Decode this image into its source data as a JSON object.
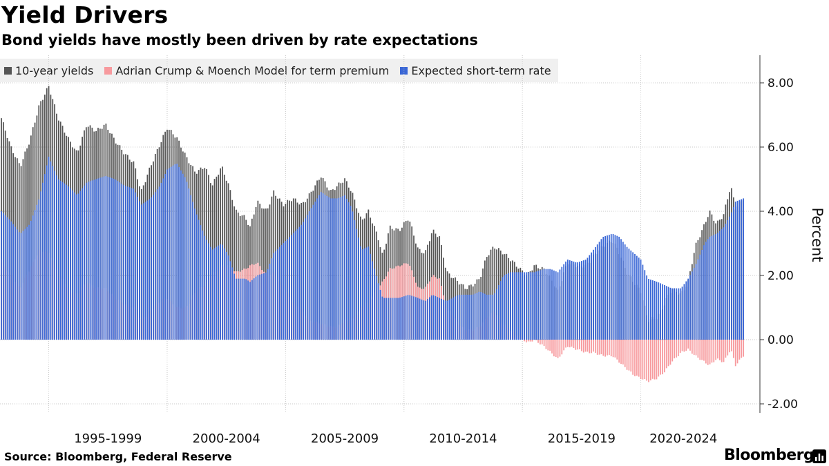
{
  "title": "Yield Drivers",
  "subtitle": "Bond yields have mostly been driven by rate expectations",
  "source": "Source: Bloomberg, Federal Reserve",
  "brand": "Bloomberg",
  "legend": [
    {
      "label": "10-year yields",
      "color": "#555555"
    },
    {
      "label": "Adrian Crump & Moench Model for term premium",
      "color": "#f79a9e"
    },
    {
      "label": "Expected short-term rate",
      "color": "#3a67d6"
    }
  ],
  "chart_data": {
    "type": "bar",
    "description_type": "stacked monthly bars overlay",
    "ylabel": "Percent",
    "ylim": [
      -2.2,
      8.8
    ],
    "y_ticks": [
      8,
      6,
      4,
      2,
      0,
      -2
    ],
    "y_tick_labels": [
      "8.00",
      "6.00",
      "4.00",
      "2.00",
      "0.00",
      "-2.00"
    ],
    "x_range": [
      1993.0,
      2024.33
    ],
    "x_period_labels": [
      {
        "label": "1995-1999",
        "center": 1997.5
      },
      {
        "label": "2000-2004",
        "center": 2002.5
      },
      {
        "label": "2005-2009",
        "center": 2007.5
      },
      {
        "label": "2010-2014",
        "center": 2012.5
      },
      {
        "label": "2015-2019",
        "center": 2017.5
      },
      {
        "label": "2020-2024",
        "center": 2021.8
      }
    ],
    "grid": true,
    "legend_position": "top-left",
    "series": [
      {
        "name": "10-year yields",
        "color": "#555555",
        "points": [
          [
            1993.0,
            6.9
          ],
          [
            1993.4,
            6.0
          ],
          [
            1993.8,
            5.4
          ],
          [
            1994.2,
            6.2
          ],
          [
            1994.6,
            7.3
          ],
          [
            1995.0,
            7.9
          ],
          [
            1995.4,
            6.9
          ],
          [
            1995.8,
            6.3
          ],
          [
            1996.2,
            5.8
          ],
          [
            1996.6,
            6.7
          ],
          [
            1997.0,
            6.5
          ],
          [
            1997.4,
            6.7
          ],
          [
            1997.8,
            6.2
          ],
          [
            1998.2,
            5.8
          ],
          [
            1998.6,
            5.5
          ],
          [
            1998.9,
            4.6
          ],
          [
            1999.3,
            5.4
          ],
          [
            1999.7,
            6.1
          ],
          [
            2000.0,
            6.6
          ],
          [
            2000.4,
            6.3
          ],
          [
            2000.8,
            5.7
          ],
          [
            2001.2,
            5.2
          ],
          [
            2001.6,
            5.4
          ],
          [
            2001.9,
            4.8
          ],
          [
            2002.3,
            5.4
          ],
          [
            2002.6,
            4.8
          ],
          [
            2002.9,
            4.0
          ],
          [
            2003.3,
            3.8
          ],
          [
            2003.5,
            3.5
          ],
          [
            2003.8,
            4.3
          ],
          [
            2004.2,
            4.0
          ],
          [
            2004.5,
            4.6
          ],
          [
            2004.9,
            4.2
          ],
          [
            2005.3,
            4.4
          ],
          [
            2005.7,
            4.2
          ],
          [
            2006.0,
            4.5
          ],
          [
            2006.5,
            5.1
          ],
          [
            2006.9,
            4.6
          ],
          [
            2007.2,
            4.8
          ],
          [
            2007.5,
            5.0
          ],
          [
            2007.8,
            4.6
          ],
          [
            2008.2,
            3.7
          ],
          [
            2008.5,
            4.0
          ],
          [
            2008.9,
            3.2
          ],
          [
            2009.1,
            2.6
          ],
          [
            2009.4,
            3.5
          ],
          [
            2009.8,
            3.4
          ],
          [
            2010.2,
            3.8
          ],
          [
            2010.6,
            2.8
          ],
          [
            2010.9,
            2.7
          ],
          [
            2011.2,
            3.4
          ],
          [
            2011.5,
            3.2
          ],
          [
            2011.8,
            2.1
          ],
          [
            2012.3,
            1.8
          ],
          [
            2012.6,
            1.6
          ],
          [
            2012.9,
            1.7
          ],
          [
            2013.2,
            1.9
          ],
          [
            2013.5,
            2.6
          ],
          [
            2013.8,
            2.9
          ],
          [
            2014.2,
            2.7
          ],
          [
            2014.5,
            2.5
          ],
          [
            2014.9,
            2.2
          ],
          [
            2015.2,
            2.0
          ],
          [
            2015.5,
            2.3
          ],
          [
            2015.9,
            2.2
          ],
          [
            2016.2,
            1.9
          ],
          [
            2016.5,
            1.5
          ],
          [
            2016.9,
            2.4
          ],
          [
            2017.3,
            2.3
          ],
          [
            2017.7,
            2.3
          ],
          [
            2018.0,
            2.6
          ],
          [
            2018.4,
            2.9
          ],
          [
            2018.8,
            3.1
          ],
          [
            2019.1,
            2.7
          ],
          [
            2019.4,
            2.1
          ],
          [
            2019.7,
            1.8
          ],
          [
            2020.0,
            1.5
          ],
          [
            2020.3,
            0.6
          ],
          [
            2020.7,
            0.7
          ],
          [
            2021.0,
            1.1
          ],
          [
            2021.3,
            1.6
          ],
          [
            2021.7,
            1.4
          ],
          [
            2022.0,
            1.8
          ],
          [
            2022.3,
            2.9
          ],
          [
            2022.7,
            3.6
          ],
          [
            2022.9,
            4.0
          ],
          [
            2023.2,
            3.6
          ],
          [
            2023.5,
            3.9
          ],
          [
            2023.8,
            4.8
          ],
          [
            2024.0,
            4.1
          ],
          [
            2024.33,
            4.4
          ]
        ]
      },
      {
        "name": "Adrian Crump & Moench Model for term premium",
        "color": "#f79a9e",
        "points": [
          [
            1993.0,
            2.5
          ],
          [
            1993.4,
            2.0
          ],
          [
            1993.8,
            1.6
          ],
          [
            1994.2,
            2.2
          ],
          [
            1994.6,
            2.8
          ],
          [
            1995.0,
            2.7
          ],
          [
            1995.4,
            2.1
          ],
          [
            1995.8,
            1.6
          ],
          [
            1996.2,
            1.4
          ],
          [
            1996.6,
            1.8
          ],
          [
            1997.0,
            1.6
          ],
          [
            1997.4,
            1.6
          ],
          [
            1997.8,
            1.3
          ],
          [
            1998.2,
            1.1
          ],
          [
            1998.6,
            1.0
          ],
          [
            1998.9,
            0.6
          ],
          [
            1999.3,
            0.9
          ],
          [
            1999.7,
            1.2
          ],
          [
            2000.0,
            1.3
          ],
          [
            2000.4,
            1.0
          ],
          [
            2000.8,
            1.0
          ],
          [
            2001.2,
            1.5
          ],
          [
            2001.6,
            1.7
          ],
          [
            2001.9,
            2.0
          ],
          [
            2002.3,
            2.3
          ],
          [
            2002.6,
            2.3
          ],
          [
            2002.9,
            2.1
          ],
          [
            2003.3,
            2.2
          ],
          [
            2003.5,
            2.3
          ],
          [
            2003.8,
            2.4
          ],
          [
            2004.2,
            2.0
          ],
          [
            2004.5,
            2.1
          ],
          [
            2004.9,
            1.6
          ],
          [
            2005.3,
            1.2
          ],
          [
            2005.7,
            0.9
          ],
          [
            2006.0,
            0.6
          ],
          [
            2006.5,
            0.5
          ],
          [
            2006.9,
            0.4
          ],
          [
            2007.2,
            0.4
          ],
          [
            2007.5,
            0.6
          ],
          [
            2007.8,
            0.6
          ],
          [
            2008.2,
            1.0
          ],
          [
            2008.5,
            1.2
          ],
          [
            2008.9,
            1.6
          ],
          [
            2009.1,
            1.8
          ],
          [
            2009.4,
            2.2
          ],
          [
            2009.8,
            2.3
          ],
          [
            2010.2,
            2.4
          ],
          [
            2010.6,
            1.6
          ],
          [
            2010.9,
            1.6
          ],
          [
            2011.2,
            2.0
          ],
          [
            2011.5,
            1.9
          ],
          [
            2011.8,
            1.0
          ],
          [
            2012.3,
            0.5
          ],
          [
            2012.6,
            0.3
          ],
          [
            2012.9,
            0.3
          ],
          [
            2013.2,
            0.4
          ],
          [
            2013.5,
            0.7
          ],
          [
            2013.8,
            0.9
          ],
          [
            2014.2,
            0.5
          ],
          [
            2014.5,
            0.3
          ],
          [
            2014.9,
            0.1
          ],
          [
            2015.2,
            -0.1
          ],
          [
            2015.5,
            0.0
          ],
          [
            2015.9,
            -0.2
          ],
          [
            2016.2,
            -0.4
          ],
          [
            2016.5,
            -0.6
          ],
          [
            2016.9,
            -0.2
          ],
          [
            2017.3,
            -0.3
          ],
          [
            2017.7,
            -0.4
          ],
          [
            2018.0,
            -0.4
          ],
          [
            2018.4,
            -0.5
          ],
          [
            2018.8,
            -0.5
          ],
          [
            2019.1,
            -0.7
          ],
          [
            2019.4,
            -0.9
          ],
          [
            2019.7,
            -1.1
          ],
          [
            2020.0,
            -1.2
          ],
          [
            2020.3,
            -1.3
          ],
          [
            2020.7,
            -1.2
          ],
          [
            2021.0,
            -1.0
          ],
          [
            2021.3,
            -0.7
          ],
          [
            2021.7,
            -0.4
          ],
          [
            2022.0,
            -0.3
          ],
          [
            2022.3,
            -0.5
          ],
          [
            2022.7,
            -0.7
          ],
          [
            2022.9,
            -0.8
          ],
          [
            2023.2,
            -0.6
          ],
          [
            2023.5,
            -0.7
          ],
          [
            2023.8,
            -0.3
          ],
          [
            2024.0,
            -0.8
          ],
          [
            2024.33,
            -0.5
          ]
        ]
      },
      {
        "name": "Expected short-term rate",
        "color": "#3a67d6",
        "points": [
          [
            1993.0,
            4.0
          ],
          [
            1993.4,
            3.7
          ],
          [
            1993.8,
            3.3
          ],
          [
            1994.2,
            3.6
          ],
          [
            1994.6,
            4.4
          ],
          [
            1995.0,
            5.7
          ],
          [
            1995.4,
            5.0
          ],
          [
            1995.8,
            4.8
          ],
          [
            1996.2,
            4.5
          ],
          [
            1996.6,
            4.9
          ],
          [
            1997.0,
            5.0
          ],
          [
            1997.4,
            5.1
          ],
          [
            1997.8,
            5.0
          ],
          [
            1998.2,
            4.8
          ],
          [
            1998.6,
            4.7
          ],
          [
            1998.9,
            4.2
          ],
          [
            1999.3,
            4.4
          ],
          [
            1999.7,
            4.8
          ],
          [
            2000.0,
            5.3
          ],
          [
            2000.4,
            5.5
          ],
          [
            2000.8,
            5.0
          ],
          [
            2001.2,
            4.0
          ],
          [
            2001.6,
            3.2
          ],
          [
            2001.9,
            2.8
          ],
          [
            2002.3,
            3.0
          ],
          [
            2002.6,
            2.6
          ],
          [
            2002.9,
            1.9
          ],
          [
            2003.3,
            1.9
          ],
          [
            2003.5,
            1.8
          ],
          [
            2003.8,
            2.0
          ],
          [
            2004.2,
            2.1
          ],
          [
            2004.5,
            2.7
          ],
          [
            2004.9,
            3.0
          ],
          [
            2005.3,
            3.3
          ],
          [
            2005.7,
            3.6
          ],
          [
            2006.0,
            4.0
          ],
          [
            2006.5,
            4.6
          ],
          [
            2006.9,
            4.4
          ],
          [
            2007.2,
            4.4
          ],
          [
            2007.5,
            4.5
          ],
          [
            2007.8,
            4.1
          ],
          [
            2008.2,
            2.8
          ],
          [
            2008.5,
            2.9
          ],
          [
            2008.9,
            1.8
          ],
          [
            2009.1,
            1.3
          ],
          [
            2009.4,
            1.3
          ],
          [
            2009.8,
            1.3
          ],
          [
            2010.2,
            1.4
          ],
          [
            2010.6,
            1.3
          ],
          [
            2010.9,
            1.2
          ],
          [
            2011.2,
            1.4
          ],
          [
            2011.5,
            1.3
          ],
          [
            2011.8,
            1.2
          ],
          [
            2012.3,
            1.4
          ],
          [
            2012.6,
            1.4
          ],
          [
            2012.9,
            1.4
          ],
          [
            2013.2,
            1.5
          ],
          [
            2013.5,
            1.4
          ],
          [
            2013.8,
            1.4
          ],
          [
            2014.2,
            2.0
          ],
          [
            2014.5,
            2.1
          ],
          [
            2014.9,
            2.1
          ],
          [
            2015.2,
            2.1
          ],
          [
            2015.5,
            2.1
          ],
          [
            2015.9,
            2.2
          ],
          [
            2016.2,
            2.2
          ],
          [
            2016.5,
            2.1
          ],
          [
            2016.9,
            2.5
          ],
          [
            2017.3,
            2.4
          ],
          [
            2017.7,
            2.5
          ],
          [
            2018.0,
            2.8
          ],
          [
            2018.4,
            3.2
          ],
          [
            2018.8,
            3.3
          ],
          [
            2019.1,
            3.2
          ],
          [
            2019.4,
            2.9
          ],
          [
            2019.7,
            2.7
          ],
          [
            2020.0,
            2.5
          ],
          [
            2020.3,
            1.9
          ],
          [
            2020.7,
            1.8
          ],
          [
            2021.0,
            1.7
          ],
          [
            2021.3,
            1.6
          ],
          [
            2021.7,
            1.6
          ],
          [
            2022.0,
            1.9
          ],
          [
            2022.3,
            2.3
          ],
          [
            2022.7,
            3.0
          ],
          [
            2022.9,
            3.2
          ],
          [
            2023.2,
            3.3
          ],
          [
            2023.5,
            3.5
          ],
          [
            2023.8,
            3.9
          ],
          [
            2024.0,
            4.3
          ],
          [
            2024.33,
            4.4
          ]
        ]
      }
    ]
  }
}
